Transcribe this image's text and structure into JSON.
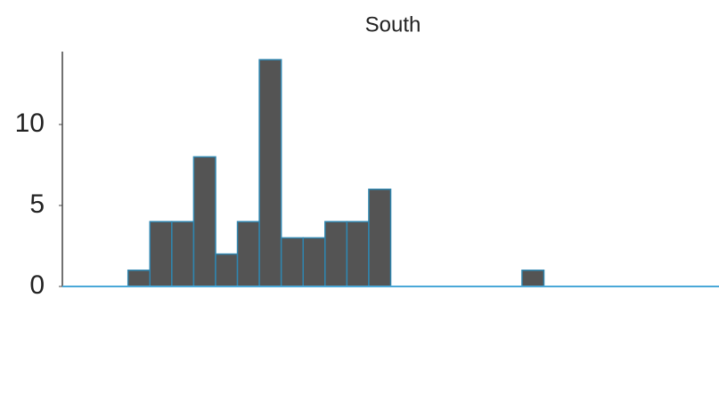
{
  "chart_data": {
    "type": "histogram",
    "title": "South",
    "categories": [
      null,
      null,
      null,
      null,
      null,
      null,
      null,
      null,
      null,
      null,
      null,
      null,
      null,
      null,
      null,
      null,
      null,
      null,
      null,
      null,
      null,
      null,
      null,
      null,
      null,
      null,
      null,
      null,
      null,
      null
    ],
    "values": [
      0,
      0,
      0,
      1,
      4,
      4,
      8,
      2,
      4,
      14,
      3,
      3,
      4,
      4,
      6,
      0,
      0,
      0,
      0,
      0,
      0,
      1,
      0,
      0,
      0,
      0,
      0,
      0,
      0,
      0
    ],
    "color": "#545454",
    "edge_color": "#2f86b0",
    "ylim": [
      0,
      14.5
    ],
    "yticks": [
      0,
      5,
      10
    ]
  }
}
